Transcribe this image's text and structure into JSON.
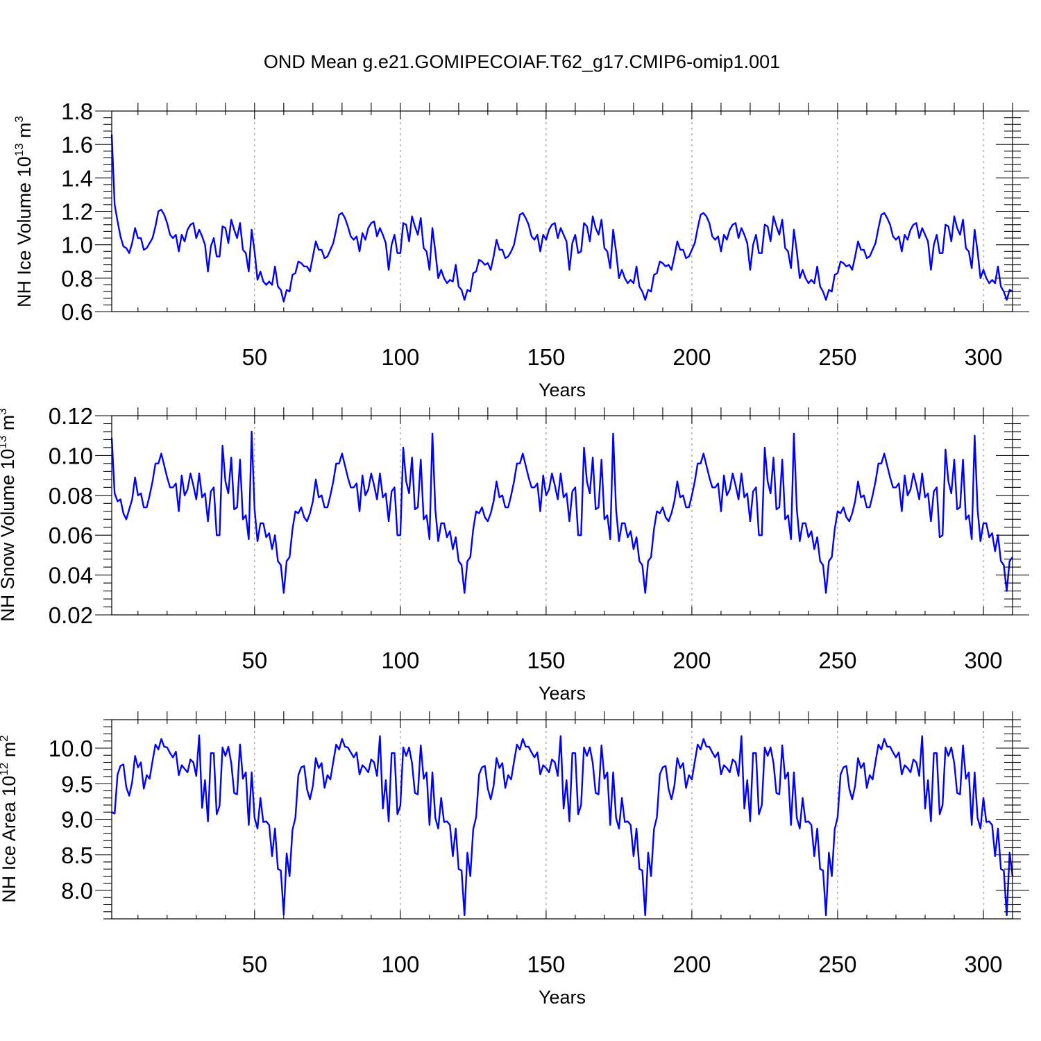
{
  "title": "OND Mean g.e21.GOMIPECOIAF.T62_g17.CMIP6-omip1.001",
  "colors": {
    "series": "#0000ff",
    "axes": "#000000",
    "grid": "#8c8c8c"
  },
  "chart_data": [
    {
      "type": "line",
      "xlabel": "Years",
      "ylabel_main": "NH Ice Volume 10",
      "ylabel_sup": "13",
      "ylabel_unit": " m",
      "ylabel_unit_sup": "3",
      "xlim": [
        1,
        310
      ],
      "ylim": [
        0.6,
        1.8
      ],
      "xticks": [
        50,
        100,
        150,
        200,
        250,
        300
      ],
      "xtick_labels": [
        "50",
        "100",
        "150",
        "200",
        "250",
        "300"
      ],
      "yticks": [
        0.6,
        0.8,
        1.0,
        1.2,
        1.4,
        1.6,
        1.8
      ],
      "ytick_labels": [
        "0.6",
        "0.8",
        "1.0",
        "1.2",
        "1.4",
        "1.6",
        "1.8"
      ],
      "x_start": 1,
      "series": [
        {
          "name": "NH Ice Volume",
          "values": [
            1.66,
            1.24,
            1.14,
            1.05,
            0.99,
            0.98,
            0.95,
            1.01,
            1.1,
            1.04,
            1.04,
            0.97,
            0.98,
            1.01,
            1.04,
            1.11,
            1.2,
            1.21,
            1.18,
            1.13,
            1.06,
            1.04,
            1.06,
            0.96,
            1.06,
            1.02,
            1.09,
            1.12,
            1.13,
            1.04,
            1.09,
            1.05,
            1.0,
            0.84,
            0.99,
            1.04,
            0.93,
            0.93,
            1.11,
            1.1,
            1.01,
            1.15,
            1.09,
            1.04,
            1.13,
            0.97,
            0.95,
            0.84,
            1.09,
            0.96,
            0.79,
            0.84,
            0.78,
            0.76,
            0.78,
            0.76,
            0.87,
            0.75,
            0.73,
            0.66,
            0.73,
            0.72,
            0.82,
            0.83,
            0.9,
            0.89,
            0.87,
            0.87,
            0.84,
            0.93,
            1.02,
            0.97,
            0.97,
            0.92,
            0.93,
            0.97,
            1.01,
            1.09,
            1.18,
            1.19,
            1.16,
            1.11,
            1.05,
            1.03,
            1.05,
            0.96,
            1.07,
            1.03,
            1.1,
            1.13,
            1.14,
            1.05,
            1.1,
            1.06,
            1.01,
            0.85,
            1.0,
            1.06,
            0.95,
            0.95,
            1.13,
            1.12,
            1.02,
            1.17,
            1.11,
            1.06,
            1.16,
            0.98,
            0.96,
            0.85,
            1.1,
            0.96,
            0.8,
            0.85,
            0.8,
            0.77,
            0.79,
            0.78,
            0.88,
            0.75,
            0.73,
            0.67,
            0.73,
            0.72,
            0.83,
            0.84,
            0.91,
            0.9,
            0.88,
            0.89,
            0.85,
            0.93,
            1.03,
            0.97,
            0.97,
            0.92,
            0.93,
            0.96,
            1.0,
            1.09,
            1.18,
            1.19,
            1.16,
            1.12,
            1.05,
            1.03,
            1.06,
            0.96,
            1.06,
            1.03,
            1.09,
            1.12,
            1.13,
            1.04,
            1.1,
            1.06,
            1.02,
            0.85,
            1.01,
            1.06,
            0.95,
            0.96,
            1.13,
            1.11,
            1.02,
            1.17,
            1.1,
            1.06,
            1.15,
            0.98,
            0.96,
            0.86,
            1.09,
            0.96,
            0.8,
            0.85,
            0.8,
            0.77,
            0.79,
            0.77,
            0.87,
            0.75,
            0.72,
            0.67,
            0.73,
            0.72,
            0.82,
            0.83,
            0.9,
            0.89,
            0.87,
            0.88,
            0.85,
            0.93,
            1.02,
            0.97,
            0.97,
            0.92,
            0.93,
            0.97,
            1.01,
            1.1,
            1.18,
            1.19,
            1.17,
            1.13,
            1.05,
            1.03,
            1.05,
            0.96,
            1.06,
            1.03,
            1.09,
            1.12,
            1.13,
            1.04,
            1.1,
            1.06,
            1.01,
            0.85,
            1.0,
            1.06,
            0.95,
            0.95,
            1.12,
            1.11,
            1.02,
            1.17,
            1.11,
            1.06,
            1.15,
            0.98,
            0.96,
            0.86,
            1.09,
            0.96,
            0.8,
            0.85,
            0.8,
            0.77,
            0.79,
            0.77,
            0.87,
            0.75,
            0.72,
            0.67,
            0.73,
            0.72,
            0.82,
            0.83,
            0.9,
            0.89,
            0.87,
            0.88,
            0.85,
            0.93,
            1.02,
            0.97,
            0.97,
            0.92,
            0.93,
            0.97,
            1.01,
            1.1,
            1.18,
            1.19,
            1.16,
            1.12,
            1.05,
            1.03,
            1.05,
            0.96,
            1.06,
            1.03,
            1.09,
            1.12,
            1.13,
            1.04,
            1.1,
            1.06,
            1.02,
            0.85,
            1.0,
            1.06,
            0.95,
            0.95,
            1.12,
            1.11,
            1.02,
            1.17,
            1.1,
            1.06,
            1.15,
            0.98,
            0.96,
            0.86,
            1.09,
            0.96,
            0.8,
            0.85,
            0.8,
            0.77,
            0.79,
            0.77,
            0.87,
            0.75,
            0.72,
            0.67,
            0.73,
            0.72
          ]
        }
      ]
    },
    {
      "type": "line",
      "xlabel": "Years",
      "ylabel_main": "NH Snow Volume 10",
      "ylabel_sup": "13",
      "ylabel_unit": " m",
      "ylabel_unit_sup": "3",
      "xlim": [
        1,
        310
      ],
      "ylim": [
        0.02,
        0.12
      ],
      "xticks": [
        50,
        100,
        150,
        200,
        250,
        300
      ],
      "xtick_labels": [
        "50",
        "100",
        "150",
        "200",
        "250",
        "300"
      ],
      "yticks": [
        0.02,
        0.04,
        0.06,
        0.08,
        0.1,
        0.12
      ],
      "ytick_labels": [
        "0.02",
        "0.04",
        "0.06",
        "0.08",
        "0.10",
        "0.12"
      ],
      "x_start": 1,
      "series": [
        {
          "name": "NH Snow Volume",
          "values": [
            0.109,
            0.081,
            0.077,
            0.078,
            0.071,
            0.068,
            0.073,
            0.078,
            0.089,
            0.08,
            0.081,
            0.074,
            0.074,
            0.08,
            0.087,
            0.096,
            0.096,
            0.101,
            0.095,
            0.089,
            0.084,
            0.084,
            0.086,
            0.072,
            0.09,
            0.08,
            0.083,
            0.091,
            0.085,
            0.078,
            0.091,
            0.079,
            0.081,
            0.067,
            0.082,
            0.084,
            0.06,
            0.06,
            0.105,
            0.087,
            0.081,
            0.099,
            0.073,
            0.074,
            0.098,
            0.068,
            0.07,
            0.058,
            0.112,
            0.073,
            0.057,
            0.066,
            0.066,
            0.059,
            0.061,
            0.053,
            0.06,
            0.047,
            0.045,
            0.031,
            0.047,
            0.049,
            0.063,
            0.072,
            0.071,
            0.074,
            0.069,
            0.067,
            0.071,
            0.077,
            0.088,
            0.079,
            0.08,
            0.074,
            0.074,
            0.08,
            0.087,
            0.096,
            0.096,
            0.101,
            0.095,
            0.089,
            0.084,
            0.084,
            0.086,
            0.072,
            0.09,
            0.08,
            0.083,
            0.091,
            0.085,
            0.078,
            0.091,
            0.079,
            0.081,
            0.067,
            0.082,
            0.084,
            0.06,
            0.06,
            0.104,
            0.087,
            0.081,
            0.099,
            0.073,
            0.074,
            0.098,
            0.068,
            0.07,
            0.058,
            0.111,
            0.073,
            0.057,
            0.066,
            0.066,
            0.059,
            0.062,
            0.053,
            0.059,
            0.047,
            0.045,
            0.031,
            0.047,
            0.049,
            0.063,
            0.072,
            0.071,
            0.074,
            0.069,
            0.067,
            0.071,
            0.077,
            0.087,
            0.079,
            0.08,
            0.074,
            0.074,
            0.08,
            0.087,
            0.096,
            0.096,
            0.101,
            0.095,
            0.089,
            0.084,
            0.084,
            0.086,
            0.072,
            0.09,
            0.08,
            0.083,
            0.091,
            0.085,
            0.078,
            0.091,
            0.079,
            0.081,
            0.067,
            0.082,
            0.084,
            0.06,
            0.06,
            0.104,
            0.087,
            0.081,
            0.099,
            0.073,
            0.074,
            0.098,
            0.068,
            0.07,
            0.058,
            0.111,
            0.073,
            0.057,
            0.066,
            0.066,
            0.059,
            0.062,
            0.053,
            0.059,
            0.047,
            0.045,
            0.031,
            0.047,
            0.049,
            0.063,
            0.072,
            0.071,
            0.074,
            0.069,
            0.067,
            0.071,
            0.077,
            0.087,
            0.079,
            0.08,
            0.074,
            0.074,
            0.08,
            0.087,
            0.096,
            0.096,
            0.101,
            0.095,
            0.089,
            0.084,
            0.084,
            0.086,
            0.072,
            0.09,
            0.08,
            0.083,
            0.091,
            0.085,
            0.078,
            0.091,
            0.079,
            0.081,
            0.067,
            0.082,
            0.084,
            0.06,
            0.06,
            0.104,
            0.087,
            0.081,
            0.099,
            0.073,
            0.074,
            0.098,
            0.068,
            0.07,
            0.058,
            0.111,
            0.073,
            0.057,
            0.066,
            0.066,
            0.059,
            0.062,
            0.053,
            0.059,
            0.047,
            0.045,
            0.031,
            0.047,
            0.049,
            0.063,
            0.072,
            0.071,
            0.074,
            0.069,
            0.067,
            0.071,
            0.077,
            0.087,
            0.079,
            0.08,
            0.074,
            0.074,
            0.08,
            0.087,
            0.096,
            0.096,
            0.101,
            0.095,
            0.089,
            0.084,
            0.084,
            0.086,
            0.072,
            0.09,
            0.08,
            0.083,
            0.091,
            0.085,
            0.078,
            0.091,
            0.079,
            0.081,
            0.067,
            0.082,
            0.084,
            0.059,
            0.06,
            0.103,
            0.087,
            0.081,
            0.098,
            0.073,
            0.074,
            0.098,
            0.068,
            0.07,
            0.058,
            0.11,
            0.073,
            0.057,
            0.066,
            0.066,
            0.059,
            0.061,
            0.052,
            0.06,
            0.047,
            0.045,
            0.032,
            0.047,
            0.049
          ]
        }
      ]
    },
    {
      "type": "line",
      "xlabel": "Years",
      "ylabel_main": "NH Ice Area 10",
      "ylabel_sup": "12",
      "ylabel_unit": " m",
      "ylabel_unit_sup": "2",
      "xlim": [
        1,
        310
      ],
      "ylim": [
        7.6,
        10.4
      ],
      "xticks": [
        50,
        100,
        150,
        200,
        250,
        300
      ],
      "xtick_labels": [
        "50",
        "100",
        "150",
        "200",
        "250",
        "300"
      ],
      "yticks": [
        8.0,
        8.5,
        9.0,
        9.5,
        10.0
      ],
      "ytick_labels": [
        "8.0",
        "8.5",
        "9.0",
        "9.5",
        "10.0"
      ],
      "x_start": 1,
      "series": [
        {
          "name": "NH Ice Area",
          "values": [
            9.1,
            9.08,
            9.63,
            9.75,
            9.77,
            9.45,
            9.33,
            9.52,
            9.89,
            9.73,
            9.8,
            9.43,
            9.62,
            9.57,
            9.82,
            10.05,
            9.98,
            10.13,
            10.02,
            10.01,
            9.93,
            9.87,
            9.95,
            9.62,
            9.76,
            9.71,
            9.66,
            9.84,
            9.8,
            9.61,
            10.18,
            9.16,
            9.55,
            8.97,
            9.93,
            9.93,
            9.07,
            9.19,
            10.01,
            9.89,
            10.02,
            9.79,
            9.37,
            9.35,
            10.05,
            9.57,
            9.66,
            8.92,
            9.66,
            9.02,
            8.87,
            9.3,
            8.96,
            8.97,
            8.92,
            8.48,
            8.87,
            8.3,
            8.28,
            7.66,
            8.52,
            8.2,
            8.85,
            9.02,
            9.62,
            9.73,
            9.75,
            9.42,
            9.28,
            9.47,
            9.86,
            9.72,
            9.79,
            9.44,
            9.62,
            9.56,
            9.81,
            10.05,
            9.98,
            10.13,
            10.02,
            10.01,
            9.94,
            9.87,
            9.94,
            9.63,
            9.76,
            9.72,
            9.66,
            9.84,
            9.8,
            9.61,
            10.17,
            9.15,
            9.55,
            8.97,
            9.93,
            9.93,
            9.07,
            9.19,
            10.01,
            9.89,
            10.01,
            9.79,
            9.37,
            9.35,
            10.04,
            9.57,
            9.66,
            8.92,
            9.66,
            9.02,
            8.87,
            9.3,
            8.96,
            8.97,
            8.92,
            8.48,
            8.87,
            8.3,
            8.28,
            7.65,
            8.53,
            8.2,
            8.86,
            9.03,
            9.63,
            9.73,
            9.75,
            9.43,
            9.28,
            9.47,
            9.86,
            9.72,
            9.79,
            9.44,
            9.62,
            9.56,
            9.81,
            10.05,
            9.98,
            10.13,
            10.02,
            10.02,
            9.94,
            9.87,
            9.94,
            9.63,
            9.76,
            9.72,
            9.66,
            9.84,
            9.8,
            9.61,
            10.17,
            9.15,
            9.55,
            8.97,
            9.93,
            9.93,
            9.07,
            9.2,
            10.01,
            9.89,
            10.01,
            9.79,
            9.37,
            9.35,
            10.04,
            9.57,
            9.66,
            8.92,
            9.66,
            9.02,
            8.87,
            9.3,
            8.96,
            8.97,
            8.92,
            8.48,
            8.87,
            8.3,
            8.28,
            7.65,
            8.53,
            8.2,
            8.86,
            9.03,
            9.63,
            9.73,
            9.75,
            9.43,
            9.28,
            9.47,
            9.86,
            9.72,
            9.79,
            9.44,
            9.62,
            9.56,
            9.81,
            10.05,
            9.98,
            10.13,
            10.02,
            10.02,
            9.94,
            9.87,
            9.94,
            9.63,
            9.76,
            9.72,
            9.66,
            9.84,
            9.8,
            9.61,
            10.17,
            9.15,
            9.55,
            8.97,
            9.93,
            9.93,
            9.07,
            9.2,
            10.01,
            9.89,
            10.01,
            9.79,
            9.37,
            9.35,
            10.04,
            9.57,
            9.66,
            8.92,
            9.66,
            9.02,
            8.87,
            9.3,
            8.96,
            8.97,
            8.92,
            8.48,
            8.87,
            8.3,
            8.28,
            7.65,
            8.53,
            8.2,
            8.86,
            9.03,
            9.63,
            9.73,
            9.75,
            9.43,
            9.28,
            9.47,
            9.86,
            9.72,
            9.79,
            9.44,
            9.62,
            9.56,
            9.81,
            10.05,
            9.98,
            10.13,
            10.02,
            10.02,
            9.94,
            9.87,
            9.94,
            9.63,
            9.76,
            9.72,
            9.66,
            9.84,
            9.8,
            9.61,
            10.17,
            9.15,
            9.55,
            8.97,
            9.93,
            9.93,
            9.07,
            9.2,
            10.01,
            9.89,
            10.01,
            9.79,
            9.37,
            9.35,
            10.04,
            9.57,
            9.66,
            8.92,
            9.66,
            9.02,
            8.87,
            9.3,
            8.96,
            8.97,
            8.92,
            8.48,
            8.87,
            8.3,
            8.28,
            7.65,
            8.53,
            8.2
          ]
        }
      ]
    }
  ]
}
